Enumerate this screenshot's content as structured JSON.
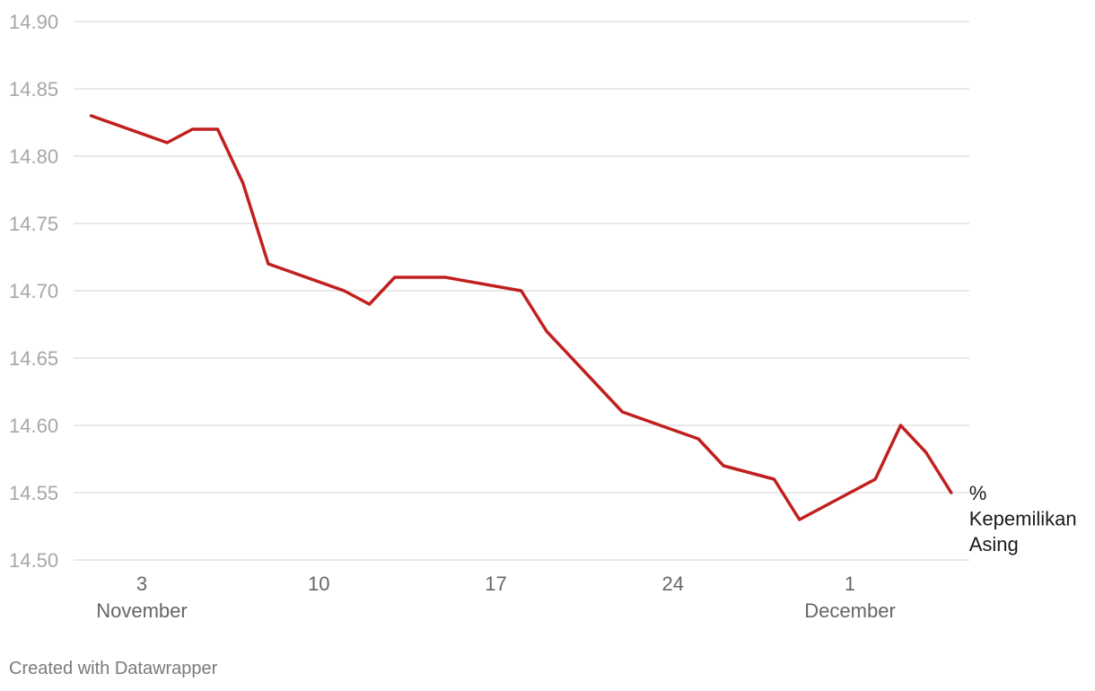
{
  "chart_data": {
    "type": "line",
    "ylim": [
      14.5,
      14.9
    ],
    "yticks": [
      "14.90",
      "14.85",
      "14.80",
      "14.75",
      "14.70",
      "14.65",
      "14.60",
      "14.55",
      "14.50"
    ],
    "xticks": [
      {
        "date": "2021-11-03",
        "label": "3",
        "sublabel": "November"
      },
      {
        "date": "2021-11-10",
        "label": "10",
        "sublabel": ""
      },
      {
        "date": "2021-11-17",
        "label": "17",
        "sublabel": ""
      },
      {
        "date": "2021-11-24",
        "label": "24",
        "sublabel": ""
      },
      {
        "date": "2021-12-01",
        "label": "1",
        "sublabel": "December"
      }
    ],
    "grid": true,
    "color": "#c0201f",
    "series": [
      {
        "name": "% Kepemilikan Asing",
        "label_lines": [
          "%",
          "Kepemilikan",
          "Asing"
        ],
        "points": [
          {
            "x": "2021-11-01",
            "y": 14.83
          },
          {
            "x": "2021-11-04",
            "y": 14.81
          },
          {
            "x": "2021-11-05",
            "y": 14.82
          },
          {
            "x": "2021-11-06",
            "y": 14.82
          },
          {
            "x": "2021-11-07",
            "y": 14.78
          },
          {
            "x": "2021-11-08",
            "y": 14.72
          },
          {
            "x": "2021-11-11",
            "y": 14.7
          },
          {
            "x": "2021-11-12",
            "y": 14.69
          },
          {
            "x": "2021-11-13",
            "y": 14.71
          },
          {
            "x": "2021-11-15",
            "y": 14.71
          },
          {
            "x": "2021-11-18",
            "y": 14.7
          },
          {
            "x": "2021-11-19",
            "y": 14.67
          },
          {
            "x": "2021-11-22",
            "y": 14.61
          },
          {
            "x": "2021-11-25",
            "y": 14.59
          },
          {
            "x": "2021-11-26",
            "y": 14.57
          },
          {
            "x": "2021-11-28",
            "y": 14.56
          },
          {
            "x": "2021-11-29",
            "y": 14.53
          },
          {
            "x": "2021-12-02",
            "y": 14.56
          },
          {
            "x": "2021-12-03",
            "y": 14.6
          },
          {
            "x": "2021-12-04",
            "y": 14.58
          },
          {
            "x": "2021-12-05",
            "y": 14.55
          }
        ]
      }
    ]
  },
  "footer": {
    "credit": "Created with Datawrapper"
  }
}
